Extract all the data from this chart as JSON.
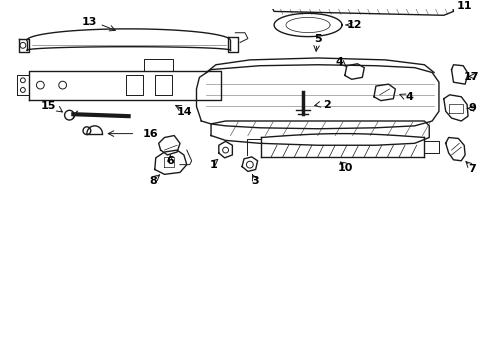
{
  "background_color": "#ffffff",
  "line_color": "#1a1a1a",
  "label_color": "#000000",
  "fig_w": 4.89,
  "fig_h": 3.6,
  "dpi": 100
}
